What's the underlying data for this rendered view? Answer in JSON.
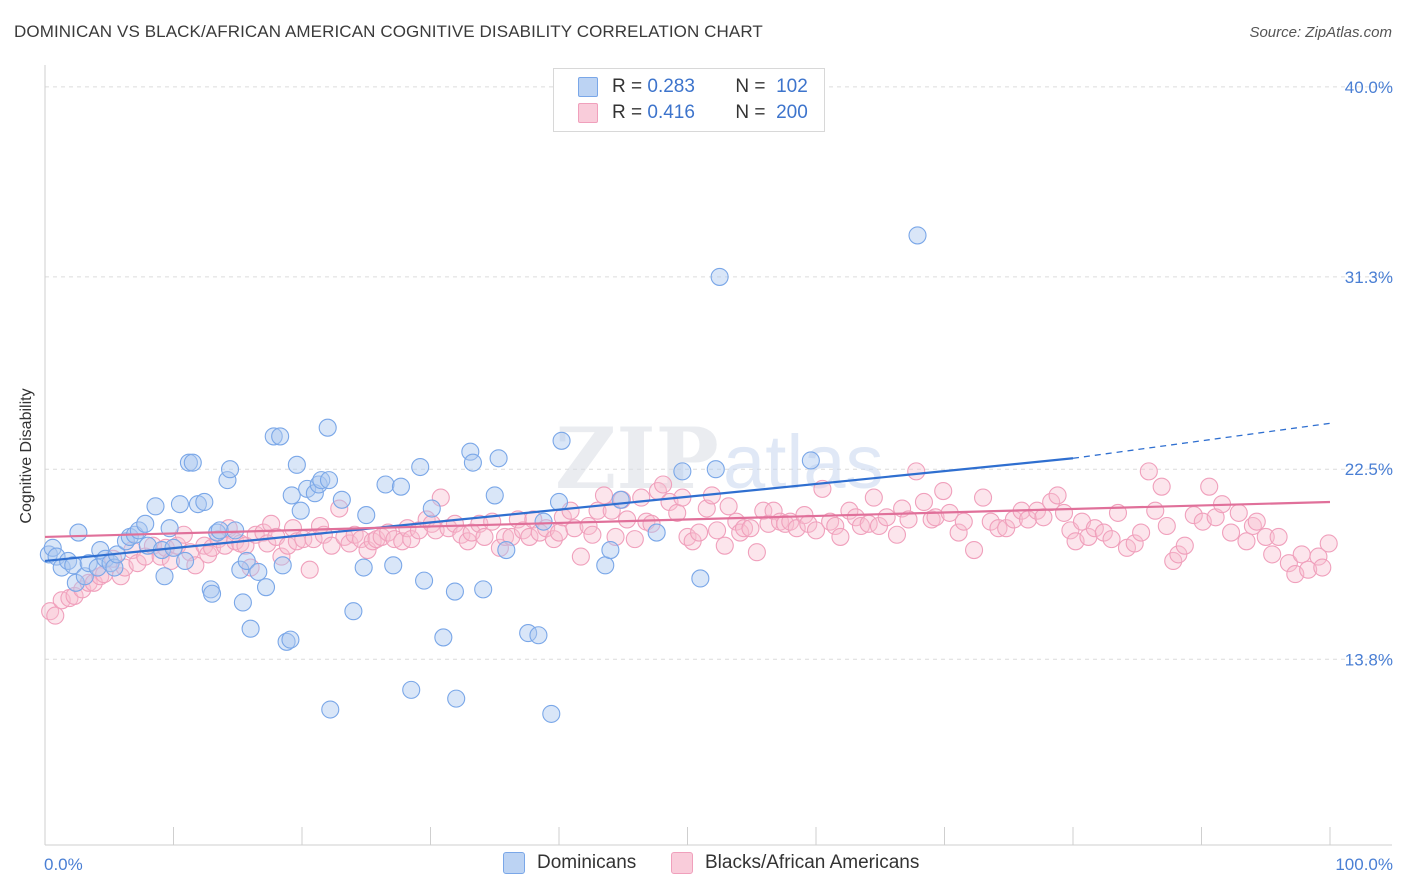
{
  "header": {
    "title": "DOMINICAN VS BLACK/AFRICAN AMERICAN COGNITIVE DISABILITY CORRELATION CHART",
    "source": "Source: ZipAtlas.com"
  },
  "legend": {
    "rows": [
      {
        "r_label": "R =",
        "r_value": "0.283",
        "n_label": "N =",
        "n_value": "102",
        "color": "#7aa7e8"
      },
      {
        "r_label": "R =",
        "r_value": "0.416",
        "n_label": "N =",
        "n_value": "200",
        "color": "#f0a0bc"
      }
    ]
  },
  "bottom_legend": {
    "items": [
      {
        "label": "Dominicans",
        "color": "#b8d0f2"
      },
      {
        "label": "Blacks/African Americans",
        "color": "#f8c4d4"
      }
    ]
  },
  "chart_data": {
    "type": "scatter",
    "title": "DOMINICAN VS BLACK/AFRICAN AMERICAN COGNITIVE DISABILITY CORRELATION CHART",
    "xlabel": "",
    "ylabel": "Cognitive Disability",
    "xlim": [
      0,
      100
    ],
    "ylim": [
      5.3,
      41
    ],
    "x_tick_labels": [
      "0.0%",
      "100.0%"
    ],
    "y_ticks": [
      13.8,
      22.5,
      31.3,
      40.0
    ],
    "y_tick_labels": [
      "13.8%",
      "22.5%",
      "31.3%",
      "40.0%"
    ],
    "grid": "horizontal dashed",
    "legend_position": "top-center",
    "watermark": "ZIPatlas",
    "series": [
      {
        "name": "Dominicans",
        "color": "#7aa7e8",
        "trend": {
          "x0": 0,
          "y0": 18.3,
          "x1": 80,
          "y1": 23.0,
          "dash_to_x": 100,
          "dash_to_y": 24.6
        },
        "points": [
          [
            0.3,
            18.6
          ],
          [
            0.6,
            18.9
          ],
          [
            0.9,
            18.5
          ],
          [
            1.3,
            18.0
          ],
          [
            1.8,
            18.3
          ],
          [
            2.2,
            18.1
          ],
          [
            2.6,
            19.6
          ],
          [
            2.4,
            17.3
          ],
          [
            3.1,
            17.6
          ],
          [
            3.4,
            18.2
          ],
          [
            4.1,
            18.0
          ],
          [
            4.3,
            18.8
          ],
          [
            4.7,
            18.4
          ],
          [
            5.1,
            18.2
          ],
          [
            5.4,
            18.0
          ],
          [
            5.6,
            18.6
          ],
          [
            6.3,
            19.2
          ],
          [
            6.6,
            19.4
          ],
          [
            7.0,
            19.5
          ],
          [
            7.3,
            19.7
          ],
          [
            7.8,
            20.0
          ],
          [
            8.0,
            19.0
          ],
          [
            8.6,
            20.8
          ],
          [
            9.1,
            18.8
          ],
          [
            9.3,
            17.6
          ],
          [
            9.7,
            19.8
          ],
          [
            10.0,
            18.9
          ],
          [
            10.5,
            20.9
          ],
          [
            10.9,
            18.3
          ],
          [
            11.2,
            22.8
          ],
          [
            11.5,
            22.8
          ],
          [
            11.9,
            20.9
          ],
          [
            12.4,
            21.0
          ],
          [
            12.9,
            17.0
          ],
          [
            13.0,
            16.8
          ],
          [
            13.4,
            19.6
          ],
          [
            13.6,
            19.7
          ],
          [
            14.2,
            22.0
          ],
          [
            14.4,
            22.5
          ],
          [
            14.8,
            19.7
          ],
          [
            15.2,
            17.9
          ],
          [
            15.4,
            16.4
          ],
          [
            15.7,
            18.3
          ],
          [
            16.0,
            15.2
          ],
          [
            16.6,
            17.8
          ],
          [
            17.2,
            17.1
          ],
          [
            17.8,
            24.0
          ],
          [
            18.3,
            24.0
          ],
          [
            18.5,
            18.1
          ],
          [
            18.8,
            14.6
          ],
          [
            19.1,
            14.7
          ],
          [
            19.2,
            21.3
          ],
          [
            19.6,
            22.7
          ],
          [
            19.9,
            20.6
          ],
          [
            20.4,
            21.6
          ],
          [
            21.0,
            21.4
          ],
          [
            21.3,
            21.8
          ],
          [
            21.5,
            22.0
          ],
          [
            22.1,
            22.0
          ],
          [
            22.2,
            11.5
          ],
          [
            22.0,
            24.4
          ],
          [
            23.1,
            21.1
          ],
          [
            24.0,
            16.0
          ],
          [
            24.8,
            18.0
          ],
          [
            25.0,
            20.4
          ],
          [
            26.5,
            21.8
          ],
          [
            27.1,
            18.1
          ],
          [
            27.7,
            21.7
          ],
          [
            28.5,
            12.4
          ],
          [
            29.2,
            22.6
          ],
          [
            29.5,
            17.4
          ],
          [
            30.1,
            20.7
          ],
          [
            31.0,
            14.8
          ],
          [
            31.9,
            16.9
          ],
          [
            32.0,
            12.0
          ],
          [
            33.1,
            23.3
          ],
          [
            33.3,
            22.8
          ],
          [
            34.1,
            17.0
          ],
          [
            35.0,
            21.3
          ],
          [
            35.3,
            23.0
          ],
          [
            35.9,
            18.8
          ],
          [
            37.6,
            15.0
          ],
          [
            38.4,
            14.9
          ],
          [
            38.8,
            20.1
          ],
          [
            39.4,
            11.3
          ],
          [
            40.0,
            21.0
          ],
          [
            40.2,
            23.8
          ],
          [
            43.6,
            18.1
          ],
          [
            44.0,
            18.8
          ],
          [
            44.8,
            21.1
          ],
          [
            47.6,
            19.6
          ],
          [
            49.6,
            22.4
          ],
          [
            51.0,
            17.5
          ],
          [
            52.2,
            22.5
          ],
          [
            52.5,
            31.3
          ],
          [
            59.6,
            22.9
          ],
          [
            67.9,
            33.2
          ]
        ]
      },
      {
        "name": "Blacks/African Americans",
        "color": "#f0a0bc",
        "trend": {
          "x0": 0,
          "y0": 19.4,
          "x1": 100,
          "y1": 21.0
        },
        "points": [
          [
            0.4,
            16.0
          ],
          [
            0.8,
            15.8
          ],
          [
            1.3,
            16.5
          ],
          [
            1.9,
            16.6
          ],
          [
            2.3,
            16.7
          ],
          [
            2.9,
            17.0
          ],
          [
            3.4,
            17.3
          ],
          [
            3.8,
            17.3
          ],
          [
            4.3,
            17.6
          ],
          [
            4.6,
            17.7
          ],
          [
            5.3,
            18.4
          ],
          [
            5.9,
            17.6
          ],
          [
            6.2,
            18.0
          ],
          [
            6.8,
            18.8
          ],
          [
            7.2,
            18.2
          ],
          [
            7.8,
            18.5
          ],
          [
            8.4,
            19.0
          ],
          [
            9.0,
            18.5
          ],
          [
            9.4,
            18.9
          ],
          [
            9.8,
            18.3
          ],
          [
            10.3,
            19.0
          ],
          [
            10.8,
            19.5
          ],
          [
            11.3,
            18.7
          ],
          [
            11.7,
            18.1
          ],
          [
            12.4,
            19.0
          ],
          [
            12.7,
            18.6
          ],
          [
            13.0,
            18.9
          ],
          [
            13.5,
            19.3
          ],
          [
            14.0,
            19.0
          ],
          [
            14.3,
            19.8
          ],
          [
            14.8,
            19.2
          ],
          [
            15.2,
            19.1
          ],
          [
            15.6,
            19.0
          ],
          [
            16.0,
            18.0
          ],
          [
            16.4,
            19.5
          ],
          [
            17.0,
            19.6
          ],
          [
            17.3,
            19.1
          ],
          [
            17.6,
            20.0
          ],
          [
            18.0,
            19.4
          ],
          [
            18.4,
            18.5
          ],
          [
            18.9,
            19.0
          ],
          [
            19.3,
            19.8
          ],
          [
            19.6,
            19.2
          ],
          [
            20.1,
            19.3
          ],
          [
            20.6,
            17.9
          ],
          [
            20.9,
            19.3
          ],
          [
            21.4,
            19.9
          ],
          [
            21.7,
            19.5
          ],
          [
            22.3,
            19.0
          ],
          [
            22.9,
            20.7
          ],
          [
            23.3,
            19.4
          ],
          [
            23.7,
            19.1
          ],
          [
            24.1,
            19.5
          ],
          [
            24.6,
            19.3
          ],
          [
            25.1,
            18.8
          ],
          [
            25.5,
            19.2
          ],
          [
            25.8,
            19.3
          ],
          [
            26.2,
            19.4
          ],
          [
            26.7,
            19.6
          ],
          [
            27.2,
            19.3
          ],
          [
            27.8,
            19.2
          ],
          [
            28.2,
            19.8
          ],
          [
            28.5,
            19.3
          ],
          [
            29.1,
            19.7
          ],
          [
            29.7,
            20.2
          ],
          [
            30.1,
            20.0
          ],
          [
            30.4,
            19.7
          ],
          [
            30.8,
            21.2
          ],
          [
            31.4,
            19.8
          ],
          [
            31.9,
            20.0
          ],
          [
            32.4,
            19.5
          ],
          [
            32.9,
            19.2
          ],
          [
            33.2,
            19.6
          ],
          [
            33.8,
            20.0
          ],
          [
            34.2,
            19.4
          ],
          [
            34.8,
            20.1
          ],
          [
            35.4,
            18.9
          ],
          [
            35.8,
            19.4
          ],
          [
            36.3,
            19.4
          ],
          [
            36.8,
            20.2
          ],
          [
            37.2,
            19.7
          ],
          [
            37.7,
            19.4
          ],
          [
            38.0,
            20.2
          ],
          [
            38.5,
            19.6
          ],
          [
            39.0,
            19.8
          ],
          [
            39.6,
            19.3
          ],
          [
            40.0,
            19.6
          ],
          [
            40.3,
            20.3
          ],
          [
            40.9,
            20.6
          ],
          [
            41.2,
            19.8
          ],
          [
            41.7,
            18.5
          ],
          [
            42.3,
            19.9
          ],
          [
            42.6,
            19.5
          ],
          [
            43.0,
            20.6
          ],
          [
            43.5,
            21.3
          ],
          [
            44.1,
            20.6
          ],
          [
            44.4,
            19.4
          ],
          [
            44.9,
            21.1
          ],
          [
            45.3,
            20.2
          ],
          [
            45.9,
            19.3
          ],
          [
            46.4,
            21.2
          ],
          [
            46.8,
            20.1
          ],
          [
            47.2,
            20.0
          ],
          [
            47.7,
            21.5
          ],
          [
            48.1,
            21.8
          ],
          [
            48.6,
            21.0
          ],
          [
            49.2,
            20.5
          ],
          [
            49.6,
            21.2
          ],
          [
            50.0,
            19.4
          ],
          [
            50.4,
            19.2
          ],
          [
            50.9,
            19.6
          ],
          [
            51.5,
            20.7
          ],
          [
            51.9,
            21.3
          ],
          [
            52.3,
            19.7
          ],
          [
            52.9,
            19.0
          ],
          [
            53.2,
            20.8
          ],
          [
            53.8,
            20.1
          ],
          [
            54.1,
            19.6
          ],
          [
            54.4,
            19.8
          ],
          [
            54.9,
            19.8
          ],
          [
            55.4,
            18.7
          ],
          [
            55.9,
            20.6
          ],
          [
            56.3,
            20.0
          ],
          [
            56.7,
            20.6
          ],
          [
            57.2,
            20.1
          ],
          [
            57.6,
            20.0
          ],
          [
            58.0,
            20.1
          ],
          [
            58.5,
            19.8
          ],
          [
            59.1,
            20.4
          ],
          [
            59.4,
            20.0
          ],
          [
            60.0,
            19.7
          ],
          [
            60.5,
            21.6
          ],
          [
            61.1,
            20.1
          ],
          [
            61.5,
            19.9
          ],
          [
            61.9,
            19.4
          ],
          [
            62.6,
            20.6
          ],
          [
            63.1,
            20.3
          ],
          [
            63.5,
            19.9
          ],
          [
            64.1,
            20.0
          ],
          [
            64.5,
            21.2
          ],
          [
            64.9,
            19.9
          ],
          [
            65.5,
            20.3
          ],
          [
            66.3,
            19.5
          ],
          [
            66.7,
            20.7
          ],
          [
            67.2,
            20.2
          ],
          [
            67.8,
            22.4
          ],
          [
            68.4,
            21.0
          ],
          [
            69.0,
            20.2
          ],
          [
            69.3,
            20.3
          ],
          [
            69.9,
            21.5
          ],
          [
            70.4,
            20.5
          ],
          [
            71.1,
            19.6
          ],
          [
            71.5,
            20.1
          ],
          [
            72.3,
            18.8
          ],
          [
            73.0,
            21.2
          ],
          [
            73.6,
            20.1
          ],
          [
            74.2,
            19.8
          ],
          [
            74.8,
            19.8
          ],
          [
            75.4,
            20.2
          ],
          [
            76.0,
            20.6
          ],
          [
            76.5,
            20.2
          ],
          [
            77.2,
            20.6
          ],
          [
            77.7,
            20.3
          ],
          [
            78.3,
            21.0
          ],
          [
            78.8,
            21.3
          ],
          [
            79.3,
            20.5
          ],
          [
            79.8,
            19.7
          ],
          [
            80.2,
            19.2
          ],
          [
            80.7,
            20.1
          ],
          [
            81.2,
            19.4
          ],
          [
            81.7,
            19.8
          ],
          [
            82.4,
            19.6
          ],
          [
            83.0,
            19.3
          ],
          [
            83.5,
            20.5
          ],
          [
            84.2,
            18.9
          ],
          [
            84.8,
            19.1
          ],
          [
            85.3,
            19.6
          ],
          [
            85.9,
            22.4
          ],
          [
            86.4,
            20.6
          ],
          [
            86.9,
            21.7
          ],
          [
            87.3,
            19.9
          ],
          [
            87.8,
            18.3
          ],
          [
            88.2,
            18.6
          ],
          [
            88.7,
            19.0
          ],
          [
            89.4,
            20.4
          ],
          [
            90.1,
            20.1
          ],
          [
            90.6,
            21.7
          ],
          [
            91.1,
            20.3
          ],
          [
            91.6,
            20.9
          ],
          [
            92.3,
            19.6
          ],
          [
            92.9,
            20.5
          ],
          [
            93.5,
            19.2
          ],
          [
            94.0,
            19.9
          ],
          [
            94.3,
            20.1
          ],
          [
            95.0,
            19.4
          ],
          [
            95.5,
            18.6
          ],
          [
            96.0,
            19.4
          ],
          [
            96.8,
            18.2
          ],
          [
            97.3,
            17.7
          ],
          [
            97.8,
            18.6
          ],
          [
            98.3,
            17.9
          ],
          [
            99.1,
            18.5
          ],
          [
            99.4,
            18.0
          ],
          [
            99.9,
            19.1
          ]
        ]
      }
    ]
  }
}
